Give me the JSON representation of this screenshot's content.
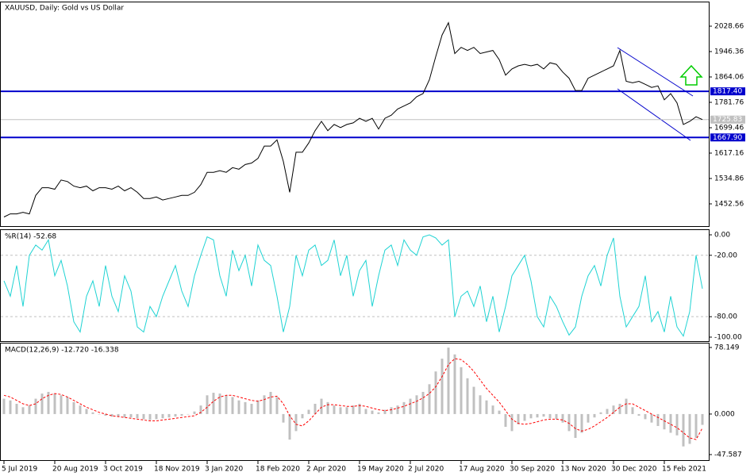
{
  "chart_data": [
    {
      "type": "line",
      "title": "XAUUSD, Daily:  Gold vs US Dollar",
      "values": [
        1410,
        1420,
        1420,
        1425,
        1420,
        1480,
        1505,
        1505,
        1500,
        1530,
        1525,
        1510,
        1505,
        1510,
        1495,
        1505,
        1505,
        1500,
        1510,
        1495,
        1505,
        1490,
        1470,
        1470,
        1475,
        1465,
        1470,
        1475,
        1480,
        1480,
        1490,
        1515,
        1555,
        1555,
        1560,
        1555,
        1570,
        1565,
        1580,
        1585,
        1600,
        1640,
        1640,
        1660,
        1590,
        1490,
        1620,
        1620,
        1650,
        1690,
        1720,
        1690,
        1710,
        1700,
        1710,
        1715,
        1730,
        1720,
        1730,
        1695,
        1730,
        1740,
        1760,
        1770,
        1780,
        1800,
        1810,
        1855,
        1930,
        2000,
        2040,
        1940,
        1960,
        1950,
        1960,
        1940,
        1945,
        1950,
        1920,
        1870,
        1890,
        1900,
        1905,
        1900,
        1905,
        1890,
        1910,
        1905,
        1880,
        1860,
        1820,
        1820,
        1860,
        1870,
        1880,
        1890,
        1900,
        1950,
        1850,
        1845,
        1850,
        1840,
        1830,
        1835,
        1790,
        1810,
        1780,
        1710,
        1720,
        1735,
        1725.83
      ],
      "color": "#000000",
      "ylim": [
        1380.5,
        2105.8
      ],
      "yticks": [
        1452.56,
        1534.86,
        1617.16,
        1699.46,
        1781.76,
        1864.06,
        1946.36,
        2028.66
      ],
      "hlines": [
        {
          "value": 1817.4,
          "label": "1817.40"
        },
        {
          "value": 1667.9,
          "label": "1667.90"
        }
      ],
      "hline_color": "#0000cc",
      "last_price": 1725.83
    },
    {
      "type": "line",
      "title": "%R(14) -52.68",
      "values": [
        -45,
        -60,
        -30,
        -70,
        -20,
        -10,
        -15,
        -5,
        -40,
        -25,
        -50,
        -85,
        -95,
        -60,
        -45,
        -70,
        -30,
        -60,
        -75,
        -40,
        -55,
        -90,
        -95,
        -70,
        -80,
        -60,
        -45,
        -30,
        -55,
        -70,
        -40,
        -20,
        -2,
        -5,
        -40,
        -60,
        -15,
        -35,
        -20,
        -50,
        -10,
        -25,
        -30,
        -60,
        -95,
        -70,
        -20,
        -40,
        -15,
        -10,
        -30,
        -25,
        -5,
        -40,
        -20,
        -60,
        -35,
        -25,
        -70,
        -40,
        -15,
        -10,
        -30,
        -5,
        -15,
        -20,
        -2,
        0,
        -3,
        -10,
        -5,
        -80,
        -60,
        -55,
        -70,
        -50,
        -85,
        -60,
        -95,
        -70,
        -40,
        -30,
        -20,
        -45,
        -80,
        -90,
        -60,
        -70,
        -85,
        -98,
        -90,
        -60,
        -40,
        -30,
        -50,
        -20,
        -3,
        -60,
        -90,
        -80,
        -70,
        -40,
        -85,
        -75,
        -95,
        -60,
        -90,
        -99,
        -75,
        -20,
        -52.68
      ],
      "color": "#1fd3d3",
      "ylim": [
        -103.9,
        4.65
      ],
      "yticks": [
        {
          "value": 0,
          "label": "0.00"
        },
        {
          "value": -20,
          "label": "-20.00"
        },
        {
          "value": -80,
          "label": "-80.00"
        },
        {
          "value": -100,
          "label": "-100.00"
        }
      ],
      "levels": [
        -20,
        -80
      ]
    },
    {
      "type": "macd",
      "title": "MACD(12,26,9) -12.720 -16.338",
      "categories": [
        "5 Jul 2019",
        null,
        null,
        null,
        null,
        null,
        null,
        null,
        "20 Aug 2019",
        null,
        null,
        null,
        null,
        null,
        null,
        null,
        "3 Oct 2019",
        null,
        null,
        null,
        null,
        null,
        null,
        null,
        "18 Nov 2019",
        null,
        null,
        null,
        null,
        null,
        null,
        null,
        "3 Jan 2020",
        null,
        null,
        null,
        null,
        null,
        null,
        null,
        "18 Feb 2020",
        null,
        null,
        null,
        null,
        null,
        null,
        null,
        "2 Apr 2020",
        null,
        null,
        null,
        null,
        null,
        null,
        null,
        "19 May 2020",
        null,
        null,
        null,
        null,
        null,
        null,
        null,
        "2 Jul 2020",
        null,
        null,
        null,
        null,
        null,
        null,
        null,
        "17 Aug 2020",
        null,
        null,
        null,
        null,
        null,
        null,
        null,
        "30 Sep 2020",
        null,
        null,
        null,
        null,
        null,
        null,
        null,
        "13 Nov 2020",
        null,
        null,
        null,
        null,
        null,
        null,
        null,
        "30 Dec 2020",
        null,
        null,
        null,
        null,
        null,
        null,
        null,
        "15 Feb 2021",
        null,
        null,
        null,
        null,
        null,
        null
      ],
      "values": [
        18,
        16,
        12,
        8,
        10,
        18,
        24,
        26,
        24,
        22,
        20,
        14,
        10,
        6,
        2,
        0,
        -2,
        -3,
        -3,
        -4,
        -4,
        -5,
        -6,
        -7,
        -6,
        -5,
        -4,
        -3,
        -2,
        0,
        3,
        10,
        22,
        25,
        24,
        22,
        20,
        16,
        14,
        12,
        16,
        22,
        26,
        20,
        -10,
        -30,
        -20,
        -5,
        5,
        12,
        18,
        14,
        10,
        8,
        8,
        10,
        12,
        6,
        4,
        2,
        5,
        8,
        10,
        14,
        18,
        22,
        26,
        35,
        50,
        65,
        78,
        70,
        55,
        42,
        32,
        22,
        16,
        10,
        4,
        -15,
        -20,
        -12,
        -8,
        -5,
        -4,
        -3,
        -5,
        -6,
        -10,
        -20,
        -28,
        -22,
        -10,
        -4,
        2,
        6,
        10,
        12,
        18,
        8,
        -2,
        -6,
        -10,
        -14,
        -18,
        -22,
        -25,
        -38,
        -35,
        -28,
        -12.72
      ],
      "signal": [
        22,
        20,
        16,
        12,
        10,
        12,
        18,
        22,
        24,
        23,
        20,
        16,
        12,
        8,
        5,
        2,
        0,
        -2,
        -3,
        -4,
        -5,
        -6,
        -7,
        -8,
        -8,
        -7,
        -6,
        -5,
        -4,
        -3,
        -2,
        2,
        8,
        15,
        20,
        22,
        22,
        20,
        18,
        16,
        15,
        17,
        20,
        21,
        12,
        -2,
        -12,
        -14,
        -8,
        0,
        8,
        11,
        11,
        10,
        9,
        9,
        10,
        9,
        7,
        5,
        4,
        5,
        7,
        9,
        12,
        15,
        19,
        24,
        32,
        44,
        58,
        65,
        64,
        58,
        50,
        40,
        30,
        22,
        14,
        4,
        -6,
        -11,
        -12,
        -11,
        -9,
        -7,
        -6,
        -6,
        -7,
        -11,
        -17,
        -20,
        -18,
        -14,
        -9,
        -4,
        2,
        8,
        12,
        12,
        8,
        4,
        0,
        -4,
        -8,
        -12,
        -16,
        -22,
        -28,
        -30,
        -16.338
      ],
      "color": "#c0c0c0",
      "signal_color": "#ff0000",
      "ylim": [
        -54.1,
        82.8
      ],
      "yticks": [
        -47.587,
        {
          "value": 0,
          "label": "0.000"
        },
        78.149
      ]
    }
  ]
}
